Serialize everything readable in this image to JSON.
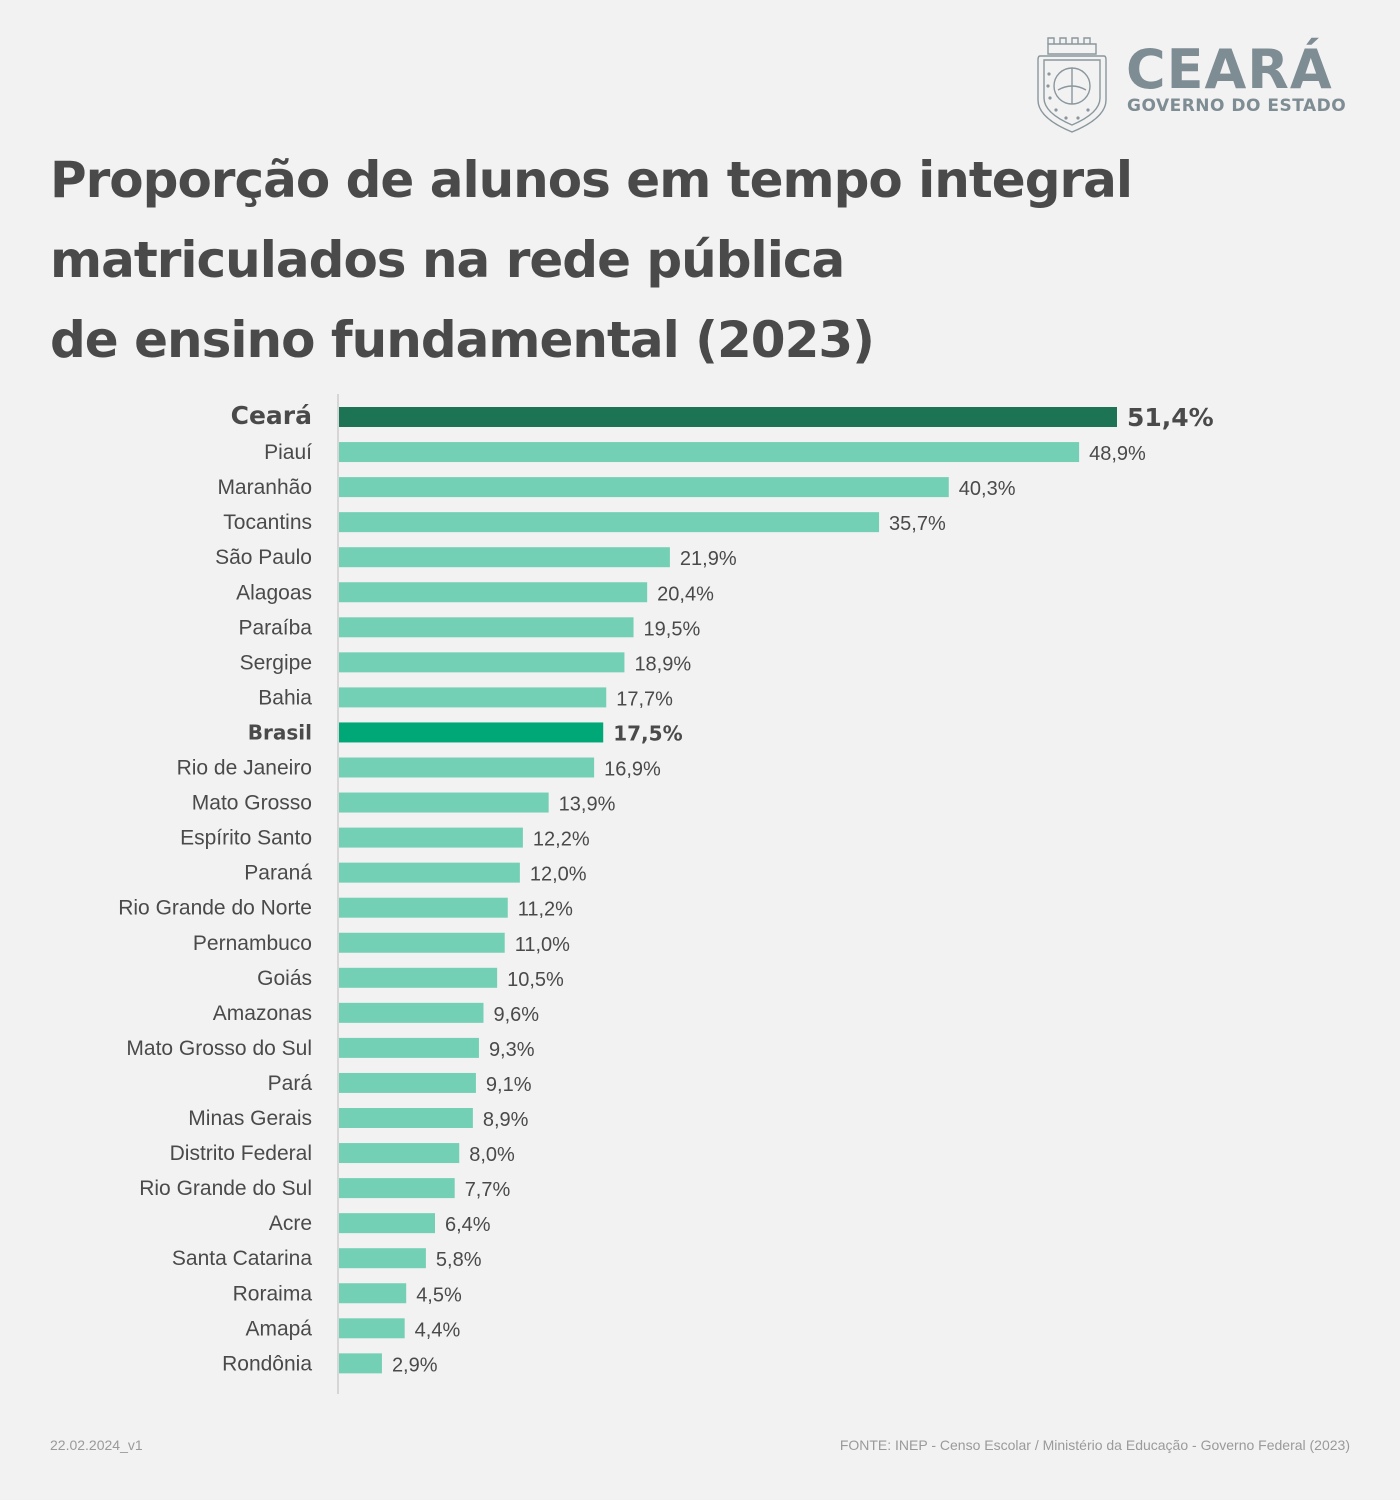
{
  "brand": {
    "name": "CEARÁ",
    "subtitle": "GOVERNO DO ESTADO",
    "emblem_icon": "ceara-coat-of-arms-icon"
  },
  "title_lines": [
    "Proporção de alunos em tempo integral",
    "matriculados na rede pública",
    "de ensino fundamental (2023)"
  ],
  "colors": {
    "highlight_state": "#1c7455",
    "highlight_national": "#00a878",
    "default_bar": "#74d0b5",
    "text": "#4a4a4a",
    "axis": "#d6d6d6"
  },
  "chart_data": {
    "type": "bar",
    "orientation": "horizontal",
    "title": "Proporção de alunos em tempo integral matriculados na rede pública de ensino fundamental (2023)",
    "xlabel": "",
    "ylabel": "",
    "unit": "%",
    "xlim": [
      0,
      51.4
    ],
    "grid": false,
    "legend": "none",
    "categories": [
      "Ceará",
      "Piauí",
      "Maranhão",
      "Tocantins",
      "São Paulo",
      "Alagoas",
      "Paraíba",
      "Sergipe",
      "Bahia",
      "Brasil",
      "Rio de Janeiro",
      "Mato Grosso",
      "Espírito Santo",
      "Paraná",
      "Rio Grande do Norte",
      "Pernambuco",
      "Goiás",
      "Amazonas",
      "Mato Grosso do Sul",
      "Pará",
      "Minas Gerais",
      "Distrito Federal",
      "Rio Grande do Sul",
      "Acre",
      "Santa Catarina",
      "Roraima",
      "Amapá",
      "Rondônia"
    ],
    "values": [
      51.4,
      48.9,
      40.3,
      35.7,
      21.9,
      20.4,
      19.5,
      18.9,
      17.7,
      17.5,
      16.9,
      13.9,
      12.2,
      12.0,
      11.2,
      11.0,
      10.5,
      9.6,
      9.3,
      9.1,
      8.9,
      8.0,
      7.7,
      6.4,
      5.8,
      4.5,
      4.4,
      2.9
    ],
    "value_labels": [
      "51,4%",
      "48,9%",
      "40,3%",
      "35,7%",
      "21,9%",
      "20,4%",
      "19,5%",
      "18,9%",
      "17,7%",
      "17,5%",
      "16,9%",
      "13,9%",
      "12,2%",
      "12,0%",
      "11,2%",
      "11,0%",
      "10,5%",
      "9,6%",
      "9,3%",
      "9,1%",
      "8,9%",
      "8,0%",
      "7,7%",
      "6,4%",
      "5,8%",
      "4,5%",
      "4,4%",
      "2,9%"
    ],
    "highlight": {
      "Ceará": "state",
      "Brasil": "national"
    }
  },
  "footer": {
    "version": "22.02.2024_v1",
    "source": "FONTE: INEP - Censo Escolar / Ministério da Educação - Governo Federal (2023)"
  }
}
